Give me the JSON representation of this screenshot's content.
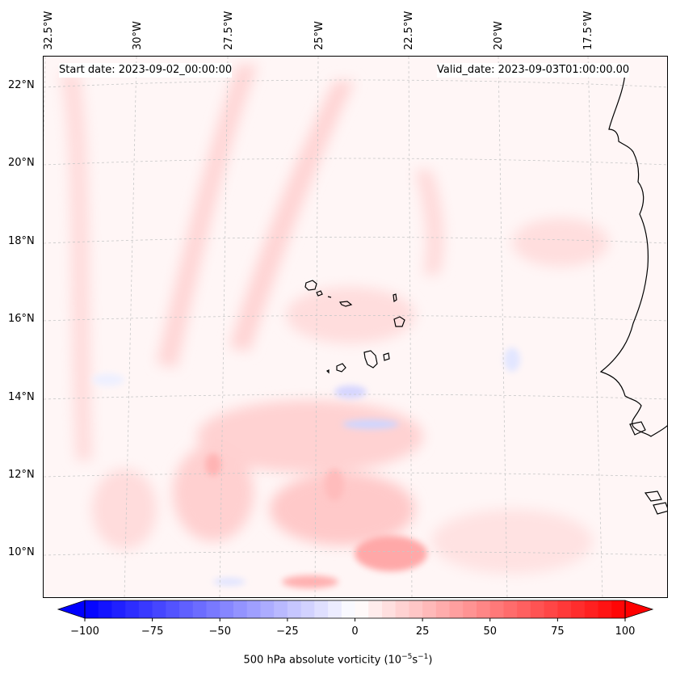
{
  "header": {
    "start_date": "Start date: 2023-09-02_00:00:00",
    "valid_date": "Valid_date: 2023-09-03T01:00:00.00"
  },
  "map": {
    "longitude_labels": [
      "32.5°W",
      "30°W",
      "27.5°W",
      "25°W",
      "22.5°W",
      "20°W",
      "17.5°W"
    ],
    "latitude_labels": [
      "22°N",
      "20°N",
      "18°N",
      "16°N",
      "14°N",
      "12°N",
      "10°N"
    ],
    "gridlines": true,
    "features": [
      "Cape Verde islands coastlines",
      "West Africa coastline"
    ],
    "field": "500 hPa absolute vorticity"
  },
  "colorbar": {
    "min": -100,
    "max": 100,
    "extend": "both",
    "tick_labels": [
      "−100",
      "−75",
      "−50",
      "−25",
      "0",
      "25",
      "50",
      "75",
      "100"
    ],
    "label_text": "500 hPa absolute vorticity (10",
    "label_exp1": "−5",
    "label_mid": "s",
    "label_exp2": "−1",
    "label_end": ")",
    "colors": {
      "low": "#0000ff",
      "mid": "#ffffff",
      "high": "#ff0000"
    }
  }
}
